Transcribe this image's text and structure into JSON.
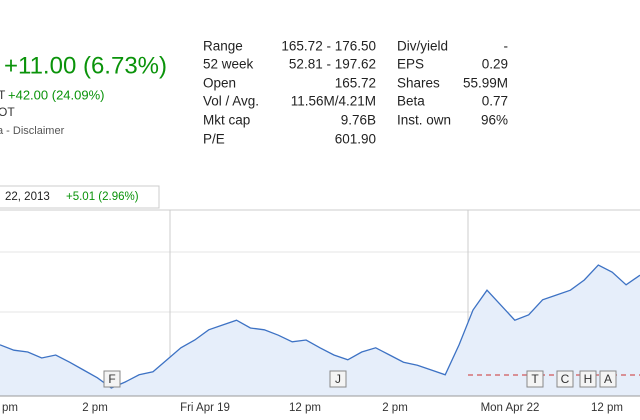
{
  "quote": {
    "change": "+11.00 (6.73%)",
    "ytd_prefix": "T",
    "ytd_change": "+42.00 (24.09%)",
    "exchange": "OT",
    "disclaimer": "a - Disclaimer"
  },
  "stats": {
    "left": [
      [
        "Range",
        "165.72 - 176.50"
      ],
      [
        "52 week",
        "52.81 - 197.62"
      ],
      [
        "Open",
        "165.72"
      ],
      [
        "Vol / Avg.",
        "11.56M/4.21M"
      ],
      [
        "Mkt cap",
        "9.76B"
      ],
      [
        "P/E",
        "601.90"
      ]
    ],
    "right": [
      [
        "Div/yield",
        "-"
      ],
      [
        "EPS",
        "0.29"
      ],
      [
        "Shares",
        "55.99M"
      ],
      [
        "Beta",
        "0.77"
      ],
      [
        "Inst. own",
        "96%"
      ]
    ]
  },
  "chart_data": {
    "type": "line",
    "date": "22, 2013",
    "change": "+5.01 (2.96%)",
    "time_labels": [
      "pm",
      "2 pm",
      "Fri Apr 19",
      "12 pm",
      "2 pm",
      "Mon Apr 22",
      "12 pm"
    ],
    "events": [
      "F",
      "J",
      "T",
      "C",
      "H",
      "A"
    ],
    "ylim": [
      150,
      180
    ],
    "series": [
      {
        "color": "#3d72c4",
        "values": [
          159.2,
          158.3,
          158.0,
          157.0,
          157.5,
          156.3,
          155.0,
          153.7,
          152.0,
          153.0,
          154.2,
          154.7,
          156.7,
          158.7,
          160.0,
          161.7,
          162.5,
          163.3,
          162.0,
          161.7,
          160.8,
          159.7,
          160.0,
          158.7,
          157.5,
          156.7,
          158.0,
          158.7,
          157.5,
          156.3,
          155.8,
          155.0,
          154.2,
          159.2,
          165.0,
          168.3,
          165.8,
          163.3,
          164.2,
          166.7,
          167.5,
          168.3,
          170.0,
          172.5,
          171.3,
          169.2,
          170.8
        ]
      }
    ]
  }
}
